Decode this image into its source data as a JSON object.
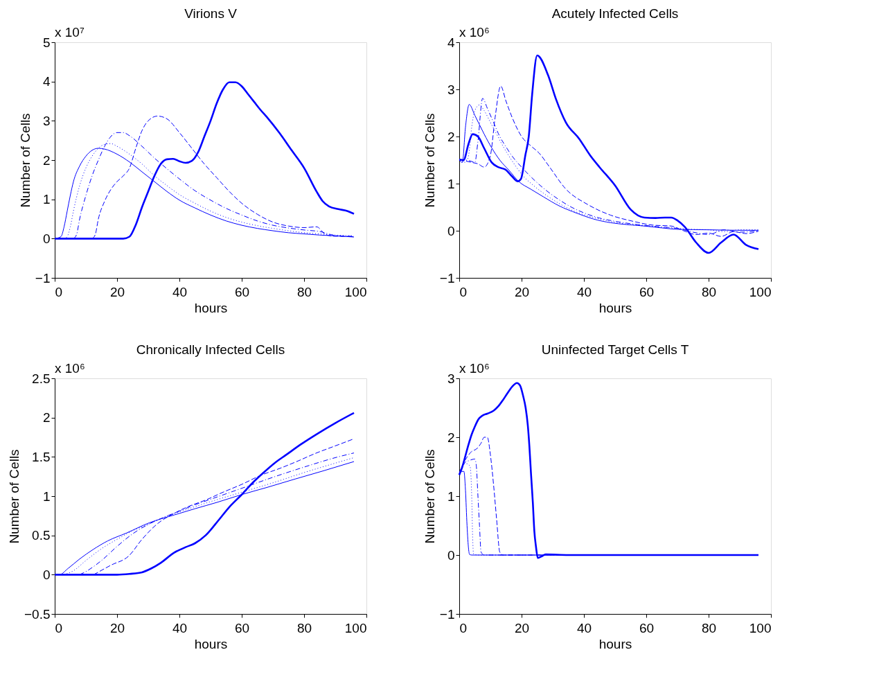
{
  "chart_data": [
    {
      "type": "line",
      "title": "Virions V",
      "xlabel": "hours",
      "ylabel": "Number of Cells",
      "annotations": [
        "x 10⁷"
      ],
      "xlim": [
        0,
        100
      ],
      "xticks": [
        0,
        20,
        40,
        60,
        80,
        100
      ],
      "ylim": [
        -1,
        5
      ],
      "yticks": [
        -1,
        0,
        1,
        2,
        3,
        4,
        5
      ],
      "grid": false,
      "series": [
        {
          "color": "#0000ff",
          "line_style": "solid",
          "x": [
            0,
            2,
            3,
            4,
            5,
            6,
            8,
            10,
            12,
            14,
            16,
            20,
            24,
            28,
            32,
            36,
            40,
            45,
            50,
            55,
            60,
            65,
            70,
            75,
            80,
            85,
            90,
            96
          ],
          "values": [
            0,
            0.05,
            0.3,
            0.7,
            1.1,
            1.45,
            1.85,
            2.1,
            2.25,
            2.3,
            2.28,
            2.15,
            1.95,
            1.7,
            1.45,
            1.2,
            0.98,
            0.78,
            0.6,
            0.45,
            0.34,
            0.26,
            0.2,
            0.15,
            0.12,
            0.09,
            0.07,
            0.04
          ]
        },
        {
          "color": "#0000ff",
          "line_style": "dotted",
          "x": [
            3,
            4,
            5,
            6,
            7,
            8,
            10,
            12,
            14,
            16,
            18,
            20,
            24,
            28,
            32,
            36,
            40,
            45,
            50,
            55,
            60,
            65,
            70,
            75,
            80,
            85,
            90,
            96
          ],
          "values": [
            0,
            0.05,
            0.3,
            0.7,
            1.05,
            1.35,
            1.8,
            2.1,
            2.3,
            2.4,
            2.42,
            2.35,
            2.15,
            1.9,
            1.6,
            1.35,
            1.12,
            0.9,
            0.7,
            0.54,
            0.42,
            0.33,
            0.26,
            0.2,
            0.15,
            0.12,
            0.09,
            0.07
          ]
        },
        {
          "color": "#0000ff",
          "line_style": "dashdot",
          "x": [
            6,
            7,
            8,
            10,
            12,
            14,
            16,
            18,
            20,
            22,
            24,
            28,
            32,
            36,
            40,
            45,
            50,
            55,
            60,
            65,
            70,
            75,
            80,
            85,
            90,
            96
          ],
          "values": [
            0,
            0.1,
            0.5,
            1.1,
            1.6,
            2.0,
            2.35,
            2.6,
            2.7,
            2.7,
            2.62,
            2.35,
            2.05,
            1.78,
            1.52,
            1.22,
            0.98,
            0.77,
            0.6,
            0.45,
            0.34,
            0.27,
            0.22,
            0.18,
            0.08,
            0.05
          ]
        },
        {
          "color": "#0000ff",
          "line_style": "dashed",
          "x": [
            12,
            13,
            14,
            16,
            18,
            20,
            22,
            24,
            26,
            28,
            30,
            33,
            36,
            40,
            44,
            48,
            52,
            56,
            60,
            65,
            70,
            75,
            80,
            84,
            87,
            90,
            96
          ],
          "values": [
            0,
            0.1,
            0.5,
            0.95,
            1.25,
            1.45,
            1.6,
            1.8,
            2.3,
            2.75,
            3.0,
            3.12,
            3.05,
            2.7,
            2.3,
            1.9,
            1.55,
            1.2,
            0.9,
            0.62,
            0.42,
            0.32,
            0.28,
            0.3,
            0.1,
            0.06,
            0.06
          ]
        },
        {
          "color": "#0000ff",
          "line_style": "solid",
          "x": [
            0,
            20,
            22,
            24,
            26,
            28,
            30,
            32,
            34,
            36,
            38,
            40,
            42,
            44,
            46,
            48,
            50,
            52,
            54,
            56,
            58,
            60,
            62,
            64,
            66,
            68,
            72,
            76,
            80,
            84,
            86,
            88,
            91,
            94,
            96
          ],
          "values": [
            0,
            0,
            0,
            0.05,
            0.35,
            0.8,
            1.2,
            1.6,
            1.9,
            2.02,
            2.03,
            1.97,
            1.93,
            1.98,
            2.2,
            2.6,
            3.0,
            3.45,
            3.8,
            3.98,
            3.98,
            3.88,
            3.68,
            3.48,
            3.28,
            3.1,
            2.7,
            2.25,
            1.8,
            1.2,
            0.95,
            0.82,
            0.75,
            0.7,
            0.63
          ]
        }
      ]
    },
    {
      "type": "line",
      "title": "Acutely Infected Cells",
      "xlabel": "hours",
      "ylabel": "Number of Cells",
      "annotations": [
        "x 10⁶"
      ],
      "xlim": [
        0,
        100
      ],
      "xticks": [
        0,
        20,
        40,
        60,
        80,
        100
      ],
      "ylim": [
        -1,
        4
      ],
      "yticks": [
        -1,
        0,
        1,
        2,
        3,
        4
      ],
      "grid": false,
      "series": [
        {
          "color": "#0000ff",
          "line_style": "solid",
          "x": [
            0,
            1,
            2,
            3.2,
            5,
            8,
            10.4,
            13,
            16,
            19,
            23,
            27,
            32,
            37.8,
            43,
            48.6,
            54,
            59.4,
            65,
            70,
            80,
            90,
            96
          ],
          "values": [
            1.5,
            1.45,
            2.2,
            2.68,
            2.45,
            2.05,
            1.76,
            1.5,
            1.28,
            1.05,
            0.88,
            0.72,
            0.53,
            0.37,
            0.25,
            0.17,
            0.13,
            0.1,
            0.06,
            0.03,
            0.02,
            0.01,
            0.01
          ]
        },
        {
          "color": "#0000ff",
          "line_style": "dotted",
          "x": [
            0,
            1,
            2,
            3,
            4,
            5,
            6.5,
            8,
            10,
            12,
            14,
            16,
            18,
            20,
            24,
            28,
            32,
            36,
            40,
            45,
            50,
            55,
            60,
            65,
            70,
            75,
            80,
            85,
            90,
            96
          ],
          "values": [
            1.5,
            1.48,
            1.45,
            1.6,
            2.2,
            2.55,
            2.67,
            2.55,
            2.3,
            2.05,
            1.8,
            1.58,
            1.38,
            1.2,
            0.95,
            0.75,
            0.58,
            0.44,
            0.34,
            0.25,
            0.18,
            0.13,
            0.1,
            0.07,
            0.05,
            0.03,
            0.02,
            -0.02,
            0.02,
            0.02
          ]
        },
        {
          "color": "#0000ff",
          "line_style": "dashdot",
          "x": [
            0,
            2,
            4,
            5,
            6,
            7.5,
            9,
            11,
            13,
            15,
            17,
            20,
            24,
            28,
            32,
            36,
            40,
            45,
            50,
            55,
            60,
            65,
            70,
            75,
            80,
            85,
            90,
            96
          ],
          "values": [
            1.5,
            1.5,
            1.47,
            1.45,
            1.9,
            2.81,
            2.6,
            2.3,
            2.0,
            1.78,
            1.58,
            1.35,
            1.08,
            0.85,
            0.66,
            0.5,
            0.38,
            0.27,
            0.2,
            0.15,
            0.11,
            0.08,
            0.05,
            -0.03,
            -0.08,
            0.02,
            -0.03,
            0.0
          ]
        },
        {
          "color": "#0000ff",
          "line_style": "dashed",
          "x": [
            0,
            2,
            4,
            6,
            8,
            10,
            11.5,
            13.3,
            15,
            17,
            20,
            23,
            25.6,
            29,
            34,
            41.4,
            48.6,
            55.8,
            62,
            68,
            72,
            76,
            80,
            84,
            88,
            92,
            96
          ],
          "values": [
            1.5,
            1.48,
            1.45,
            1.42,
            1.35,
            1.6,
            2.4,
            3.07,
            2.75,
            2.4,
            2.0,
            1.8,
            1.65,
            1.35,
            0.9,
            0.55,
            0.33,
            0.2,
            0.12,
            0.1,
            0.0,
            -0.08,
            -0.05,
            -0.12,
            -0.02,
            -0.06,
            -0.01
          ]
        },
        {
          "color": "#0000ff",
          "line_style": "solid",
          "x": [
            0,
            1.4,
            3,
            4.3,
            6,
            8,
            10.4,
            12.5,
            14.8,
            17,
            18.7,
            19.8,
            21.2,
            22.3,
            23.4,
            25,
            28.5,
            31,
            34.2,
            38.5,
            42,
            45,
            50,
            55,
            59.4,
            63,
            66,
            68,
            70,
            72.4,
            76,
            80,
            84,
            88,
            92,
            96
          ],
          "values": [
            1.51,
            1.5,
            1.85,
            2.05,
            2.0,
            1.75,
            1.45,
            1.35,
            1.3,
            1.15,
            1.05,
            1.1,
            1.6,
            2.0,
            2.9,
            3.72,
            3.3,
            2.8,
            2.3,
            1.95,
            1.6,
            1.35,
            0.96,
            0.45,
            0.28,
            0.27,
            0.28,
            0.28,
            0.22,
            0.08,
            -0.25,
            -0.47,
            -0.25,
            -0.08,
            -0.3,
            -0.39
          ]
        }
      ]
    },
    {
      "type": "line",
      "title": "Chronically Infected Cells",
      "xlabel": "hours",
      "ylabel": "Number of Cells",
      "annotations": [
        "x 10⁶"
      ],
      "xlim": [
        0,
        100
      ],
      "xticks": [
        0,
        20,
        40,
        60,
        80,
        100
      ],
      "ylim": [
        -0.5,
        2.5
      ],
      "yticks": [
        -0.5,
        0,
        0.5,
        1,
        1.5,
        2,
        2.5
      ],
      "grid": false,
      "series": [
        {
          "color": "#0000ff",
          "line_style": "solid",
          "x": [
            0,
            1.5,
            4.3,
            8,
            12.3,
            17,
            23,
            30.3,
            38.3,
            45,
            52,
            60,
            68,
            77.3,
            86,
            96
          ],
          "values": [
            0,
            0,
            0.08,
            0.2,
            0.32,
            0.43,
            0.53,
            0.66,
            0.76,
            0.84,
            0.92,
            1.02,
            1.11,
            1.22,
            1.32,
            1.44
          ]
        },
        {
          "color": "#0000ff",
          "line_style": "dotted",
          "x": [
            3,
            6,
            10,
            15,
            20,
            25,
            30,
            35,
            40,
            50,
            60,
            70,
            80,
            90,
            96
          ],
          "values": [
            0,
            0.05,
            0.18,
            0.33,
            0.45,
            0.56,
            0.64,
            0.73,
            0.8,
            0.93,
            1.05,
            1.17,
            1.3,
            1.42,
            1.49
          ]
        },
        {
          "color": "#0000ff",
          "line_style": "dashdot",
          "x": [
            8,
            10,
            15,
            20,
            25,
            30,
            35,
            40,
            45,
            50,
            60,
            70,
            80,
            90,
            96
          ],
          "values": [
            0,
            0.04,
            0.18,
            0.36,
            0.52,
            0.64,
            0.73,
            0.81,
            0.89,
            0.96,
            1.1,
            1.24,
            1.37,
            1.49,
            1.55
          ]
        },
        {
          "color": "#0000ff",
          "line_style": "dashed",
          "x": [
            12.5,
            18,
            23.8,
            28,
            33,
            38.3,
            43,
            48.4,
            54,
            60,
            66.4,
            72,
            77,
            84,
            90,
            96
          ],
          "values": [
            0,
            0.12,
            0.24,
            0.45,
            0.65,
            0.78,
            0.87,
            0.95,
            1.05,
            1.15,
            1.27,
            1.35,
            1.43,
            1.55,
            1.64,
            1.73
          ]
        },
        {
          "color": "#0000ff",
          "line_style": "solid",
          "x": [
            0,
            20,
            24,
            28,
            31,
            34,
            38.3,
            42,
            45,
            48.4,
            52.7,
            56,
            60,
            63.5,
            67,
            70.5,
            74.4,
            79,
            84.5,
            90,
            96
          ],
          "values": [
            0,
            0,
            0.01,
            0.03,
            0.08,
            0.15,
            0.28,
            0.35,
            0.4,
            0.5,
            0.7,
            0.86,
            1.02,
            1.17,
            1.3,
            1.42,
            1.53,
            1.66,
            1.8,
            1.93,
            2.06
          ]
        }
      ]
    },
    {
      "type": "line",
      "title": "Uninfected Target Cells T",
      "xlabel": "hours",
      "ylabel": "Number of Cells",
      "annotations": [
        "x 10⁶"
      ],
      "xlim": [
        0,
        100
      ],
      "xticks": [
        0,
        20,
        40,
        60,
        80,
        100
      ],
      "ylim": [
        -1,
        3
      ],
      "yticks": [
        -1,
        0,
        1,
        2,
        3
      ],
      "grid": false,
      "series": [
        {
          "color": "#0000ff",
          "line_style": "solid",
          "x": [
            0,
            0.7,
            1.5,
            2,
            2.5,
            3,
            3.3,
            4,
            10,
            20,
            40,
            60,
            80,
            96
          ],
          "values": [
            1.4,
            1.42,
            1.42,
            1.1,
            0.5,
            0.1,
            0.01,
            0,
            0,
            0,
            0,
            0,
            0,
            0
          ]
        },
        {
          "color": "#0000ff",
          "line_style": "dotted",
          "x": [
            0,
            1,
            1.5,
            2.5,
            3.5,
            4,
            4.3,
            4.6,
            6,
            10,
            20,
            40,
            60,
            80,
            96
          ],
          "values": [
            1.38,
            1.5,
            1.55,
            1.55,
            1.5,
            1.0,
            0.3,
            0.02,
            0,
            0,
            0,
            0,
            0,
            0,
            0
          ]
        },
        {
          "color": "#0000ff",
          "line_style": "dashdot",
          "x": [
            0,
            1,
            2,
            3,
            4,
            5,
            5.5,
            6,
            6.5,
            7,
            8,
            10,
            20,
            40,
            60,
            80,
            96
          ],
          "values": [
            1.37,
            1.5,
            1.58,
            1.6,
            1.62,
            1.63,
            1.5,
            1.0,
            0.5,
            0.05,
            0,
            0,
            0,
            0,
            0,
            0,
            0
          ]
        },
        {
          "color": "#0000ff",
          "line_style": "dashed",
          "x": [
            0,
            1,
            2,
            3,
            4,
            5.5,
            7,
            8,
            9,
            10,
            11,
            12,
            13,
            14,
            20,
            40,
            60,
            80,
            96
          ],
          "values": [
            1.39,
            1.52,
            1.62,
            1.7,
            1.76,
            1.8,
            1.9,
            2.0,
            2.0,
            1.7,
            1.2,
            0.6,
            0.05,
            0,
            0,
            0,
            0,
            0,
            0
          ]
        },
        {
          "color": "#0000ff",
          "line_style": "solid",
          "x": [
            0,
            1,
            1.8,
            3,
            4,
            5,
            6.1,
            7.5,
            9,
            11,
            12.6,
            14,
            15.5,
            17,
            18.5,
            19.5,
            20.5,
            21.3,
            22,
            22.5,
            23,
            23.6,
            24.1,
            24.6,
            25.2,
            26.5,
            27.7,
            35,
            50,
            70,
            90,
            96
          ],
          "values": [
            1.36,
            1.5,
            1.65,
            1.88,
            2.05,
            2.18,
            2.3,
            2.37,
            2.4,
            2.45,
            2.53,
            2.63,
            2.75,
            2.86,
            2.92,
            2.88,
            2.7,
            2.5,
            2.2,
            1.85,
            1.4,
            0.9,
            0.4,
            0.15,
            -0.05,
            -0.02,
            0.01,
            0,
            0,
            0,
            0,
            0
          ]
        }
      ]
    }
  ]
}
